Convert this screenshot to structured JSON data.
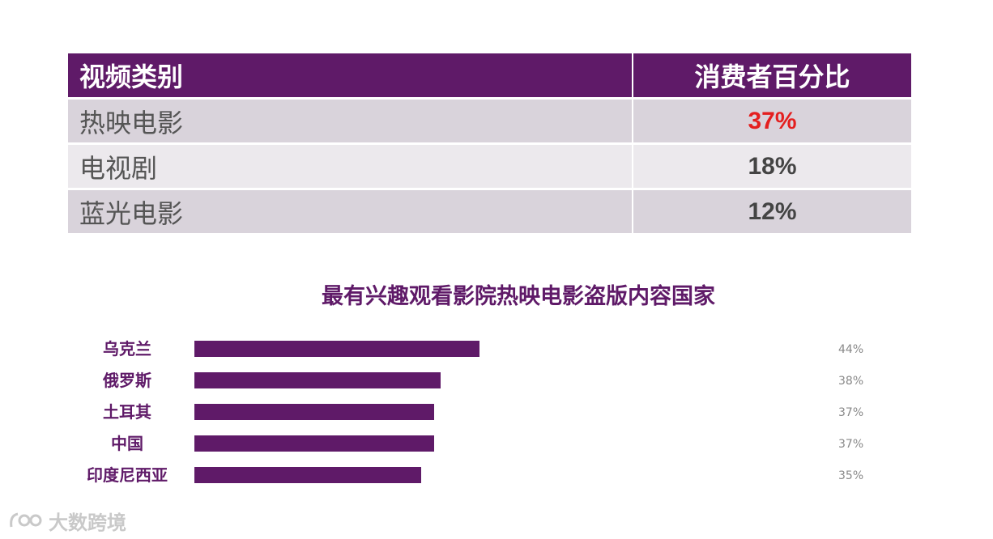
{
  "table": {
    "header": {
      "category": "视频类别",
      "percent": "消费者百分比"
    },
    "rows": [
      {
        "category": "热映电影",
        "percent": "37%",
        "highlight": true
      },
      {
        "category": "电视剧",
        "percent": "18%",
        "highlight": false
      },
      {
        "category": "蓝光电影",
        "percent": "12%",
        "highlight": false
      }
    ]
  },
  "chart_data": {
    "type": "bar",
    "orientation": "horizontal",
    "title": "最有兴趣观看影院热映电影盗版内容国家",
    "categories": [
      "乌克兰",
      "俄罗斯",
      "土耳其",
      "中国",
      "印度尼西亚"
    ],
    "values": [
      44,
      38,
      37,
      37,
      35
    ],
    "value_labels": [
      "44%",
      "38%",
      "37%",
      "37%",
      "35%"
    ],
    "xlim": [
      0,
      100
    ],
    "grid": false,
    "legend": "none",
    "bar_color": "#5f1a68"
  },
  "colors": {
    "header_bg": "#5f1a68",
    "row_odd": "#d9d3db",
    "row_even": "#ece9ed",
    "highlight_value": "#e41f1f"
  },
  "watermark": {
    "text": "大数跨境"
  }
}
